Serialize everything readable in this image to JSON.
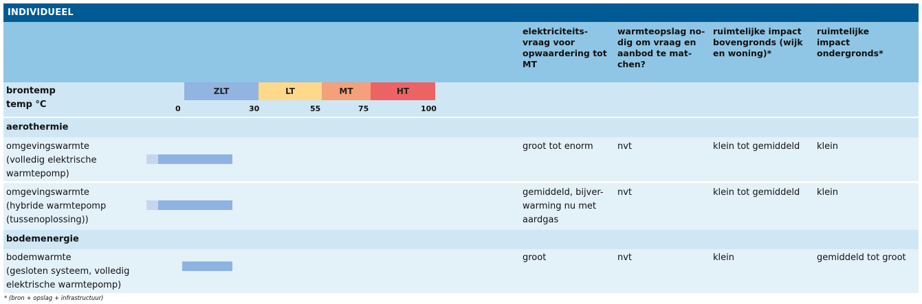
{
  "title": "INDIVIDUEEL",
  "headers": [
    "elektriciteits-\nvraag voor\nopwaardering tot\nMT",
    "warmteopslag no-\ndig om vraag en\naanbod te mat-\nchen?",
    "ruimtelijke impact\nbovengronds (wijk\nen woning)*",
    "ruimtelijke\nimpact\nondergronds*"
  ],
  "scale": {
    "label": "brontemp\ntemp °C",
    "segments": [
      {
        "label": "ZLT",
        "color": "#92b4e1"
      },
      {
        "label": "LT",
        "color": "#ffd98a"
      },
      {
        "label": "MT",
        "color": "#f4a07a"
      },
      {
        "label": "HT",
        "color": "#ed6363"
      }
    ],
    "ticks": [
      "0",
      "30",
      "55",
      "75",
      "100"
    ]
  },
  "sections": [
    {
      "name": "aerothermie",
      "rows": [
        {
          "label": "omgevingswarmte\n(volledig elektrische\nwarmtepomp)",
          "cols": [
            "groot tot enorm",
            "nvt",
            "klein tot gemiddeld",
            "klein"
          ]
        },
        {
          "label": "omgevingswarmte\n(hybride warmtepomp\n(tussenoplossing))",
          "cols": [
            "gemiddeld, bijver-\nwarming nu met\naardgas",
            "nvt",
            "klein tot gemiddeld",
            "klein"
          ]
        }
      ]
    },
    {
      "name": "bodemenergie",
      "rows": [
        {
          "label": "bodemwarmte\n(gesloten systeem, volledig\nelektrische warmtepomp)",
          "cols": [
            "groot",
            "nvt",
            "klein",
            "gemiddeld tot groot"
          ]
        }
      ]
    }
  ],
  "footnote": "*  (bron + opslag + infrastructuur)"
}
